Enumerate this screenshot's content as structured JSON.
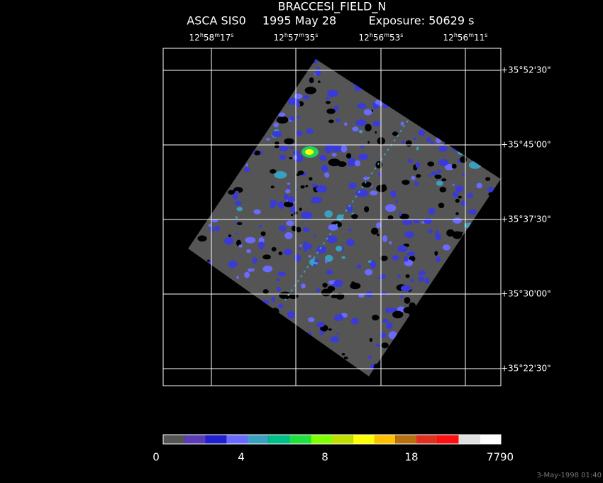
{
  "header": {
    "title": "BRACCESI_FIELD_N",
    "instrument": "ASCA SIS0",
    "date": "1995 May 28",
    "exposure": "Exposure: 50629 s"
  },
  "ra_labels": [
    [
      "12",
      "h",
      "58",
      "m",
      "17",
      "s"
    ],
    [
      "12",
      "h",
      "57",
      "m",
      "35",
      "s"
    ],
    [
      "12",
      "h",
      "56",
      "m",
      "53",
      "s"
    ],
    [
      "12",
      "h",
      "56",
      "m",
      "11",
      "s"
    ]
  ],
  "dec_labels": [
    "+35°52'30\"",
    "+35°45'00\"",
    "+35°37'30\"",
    "+35°30'00\"",
    "+35°22'30\""
  ],
  "colorbar_labels": [
    "0",
    "4",
    "8",
    "18",
    "7790"
  ],
  "footer": "3-May-1998 01:40"
}
